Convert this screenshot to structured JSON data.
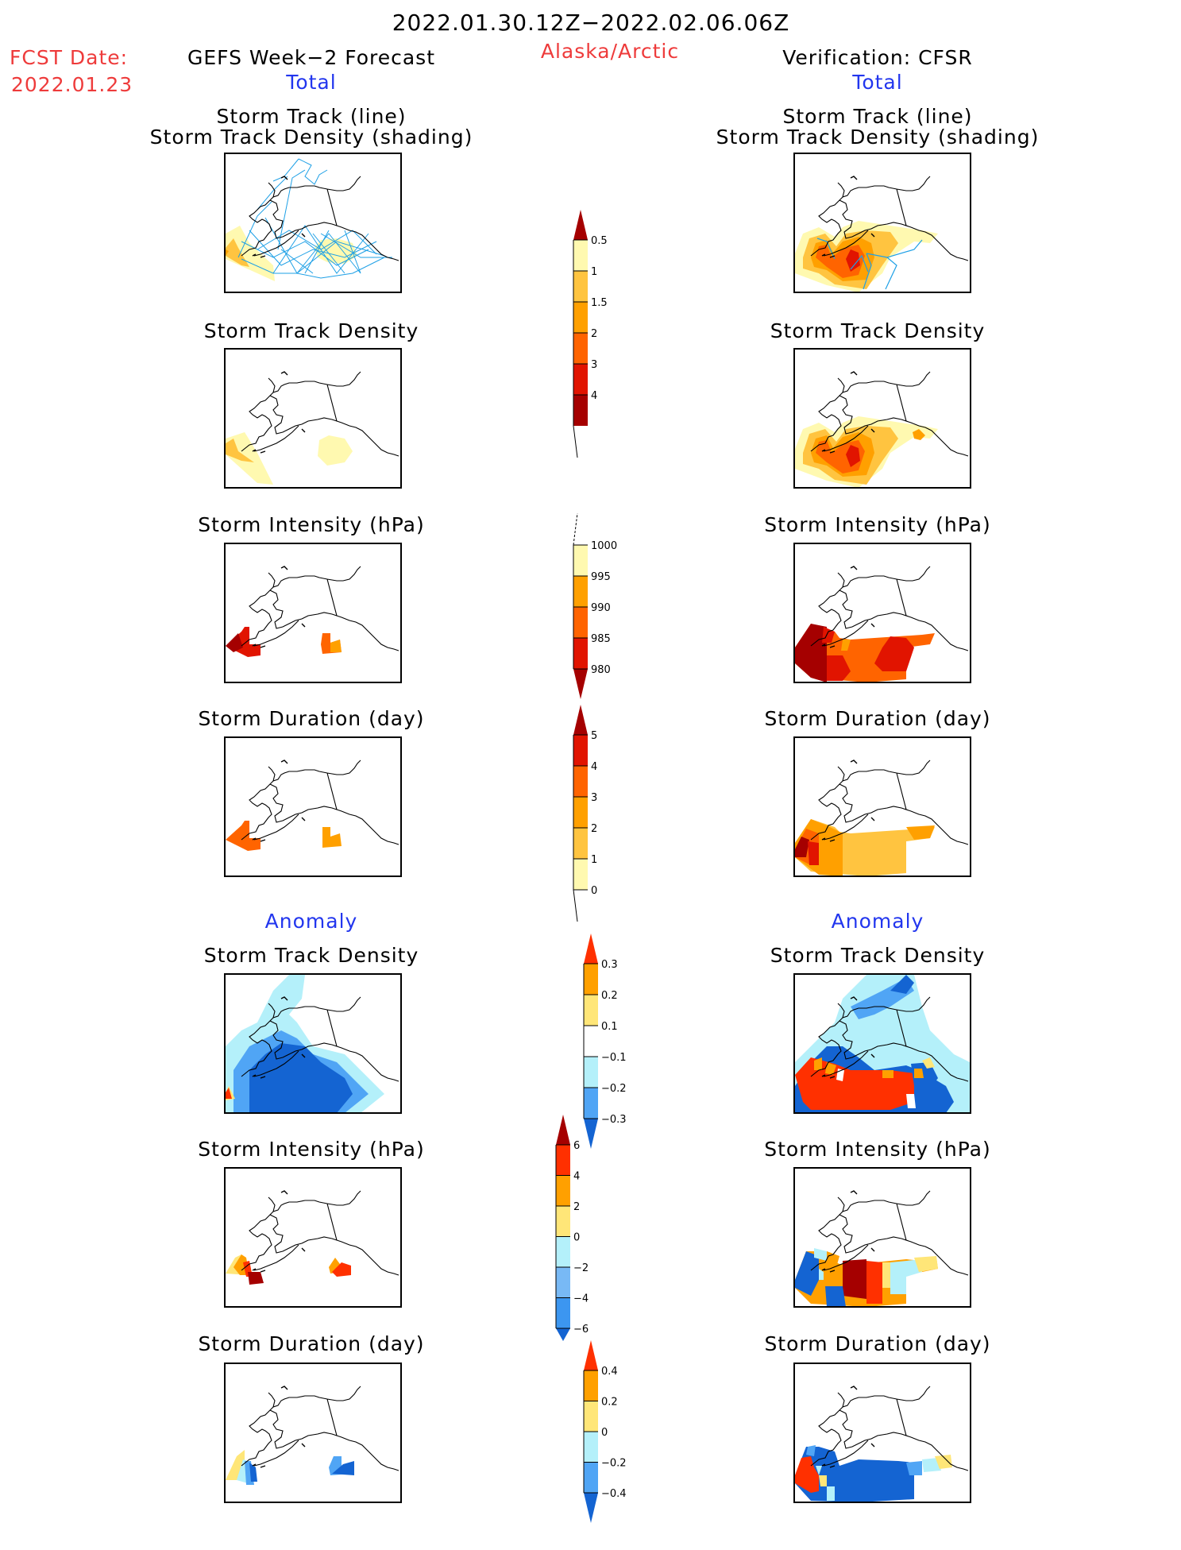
{
  "header": {
    "period": "2022.01.30.12Z−2022.02.06.06Z",
    "region": "Alaska/Arctic",
    "fcst_label": "FCST Date:",
    "fcst_date": "2022.01.23",
    "left_title": "GEFS Week−2 Forecast",
    "right_title": "Verification: CFSR",
    "total_label": "Total",
    "anomaly_label": "Anomaly"
  },
  "panel_titles": {
    "track_line": "Storm Track (line)",
    "track_shading": "Storm Track Density (shading)",
    "density": "Storm Track Density",
    "intensity": "Storm Intensity (hPa)",
    "duration": "Storm Duration (day)"
  },
  "colors": {
    "yellow_light": "#fff9b0",
    "yellow": "#ffc440",
    "orange": "#ffa000",
    "orange_red": "#ff6400",
    "red": "#e11400",
    "dark_red": "#a50000",
    "anom_red": "#ff3000",
    "anom_orange": "#ffa000",
    "anom_yellow": "#ffe678",
    "anom_cyan": "#b4f0fa",
    "anom_lightblue": "#50a5f5",
    "anom_blue": "#1e6eeb",
    "anom_darkblue": "#1464d2",
    "track_line": "#1ea0e6"
  },
  "chart_data": [
    {
      "type": "heatmap",
      "name": "colorbar-track-density",
      "extends": "both",
      "levels": [
        "0.5",
        "1",
        "1.5",
        "2",
        "3",
        "4"
      ],
      "fills": [
        "#fff9b0",
        "#ffc440",
        "#ffa000",
        "#ff6400",
        "#e11400",
        "#a50000"
      ],
      "upper_arrow": "#a50000",
      "lower_arrow": null
    },
    {
      "type": "heatmap",
      "name": "colorbar-intensity",
      "extends": "min",
      "levels": [
        "1000",
        "995",
        "990",
        "985",
        "980"
      ],
      "fills": [
        "#fff9b0",
        "#ffa000",
        "#ff6400",
        "#e11400"
      ],
      "lower_arrow": "#a50000"
    },
    {
      "type": "heatmap",
      "name": "colorbar-duration",
      "extends": "max",
      "levels": [
        "5",
        "4",
        "3",
        "2",
        "1",
        "0"
      ],
      "fills": [
        "#e11400",
        "#ff6400",
        "#ffa000",
        "#ffc440",
        "#fff9b0"
      ],
      "upper_arrow": "#a50000"
    },
    {
      "type": "heatmap",
      "name": "colorbar-density-anomaly",
      "extends": "both",
      "levels": [
        "0.3",
        "0.2",
        "0.1",
        "−0.1",
        "−0.2",
        "−0.3"
      ],
      "fills": [
        "#ffa000",
        "#ffe678",
        "#ffffff",
        "#b4f0fa",
        "#50a5f5"
      ],
      "upper_arrow": "#ff3000",
      "lower_arrow": "#1464d2"
    },
    {
      "type": "heatmap",
      "name": "colorbar-intensity-anomaly",
      "extends": "both",
      "levels": [
        "6",
        "4",
        "2",
        "0",
        "−2",
        "−4",
        "−6"
      ],
      "fills": [
        "#ff3000",
        "#ffa000",
        "#ffe678",
        "#b4f0fa",
        "#78b9f5",
        "#3c96f0"
      ],
      "upper_arrow": "#a50000",
      "lower_arrow": "#1464d2"
    },
    {
      "type": "heatmap",
      "name": "colorbar-duration-anomaly",
      "extends": "both",
      "levels": [
        "0.4",
        "0.2",
        "0",
        "−0.2",
        "−0.4"
      ],
      "fills": [
        "#ffa000",
        "#ffe678",
        "#b4f0fa",
        "#50a5f5"
      ],
      "upper_arrow": "#ff3000",
      "lower_arrow": "#1464d2"
    }
  ]
}
